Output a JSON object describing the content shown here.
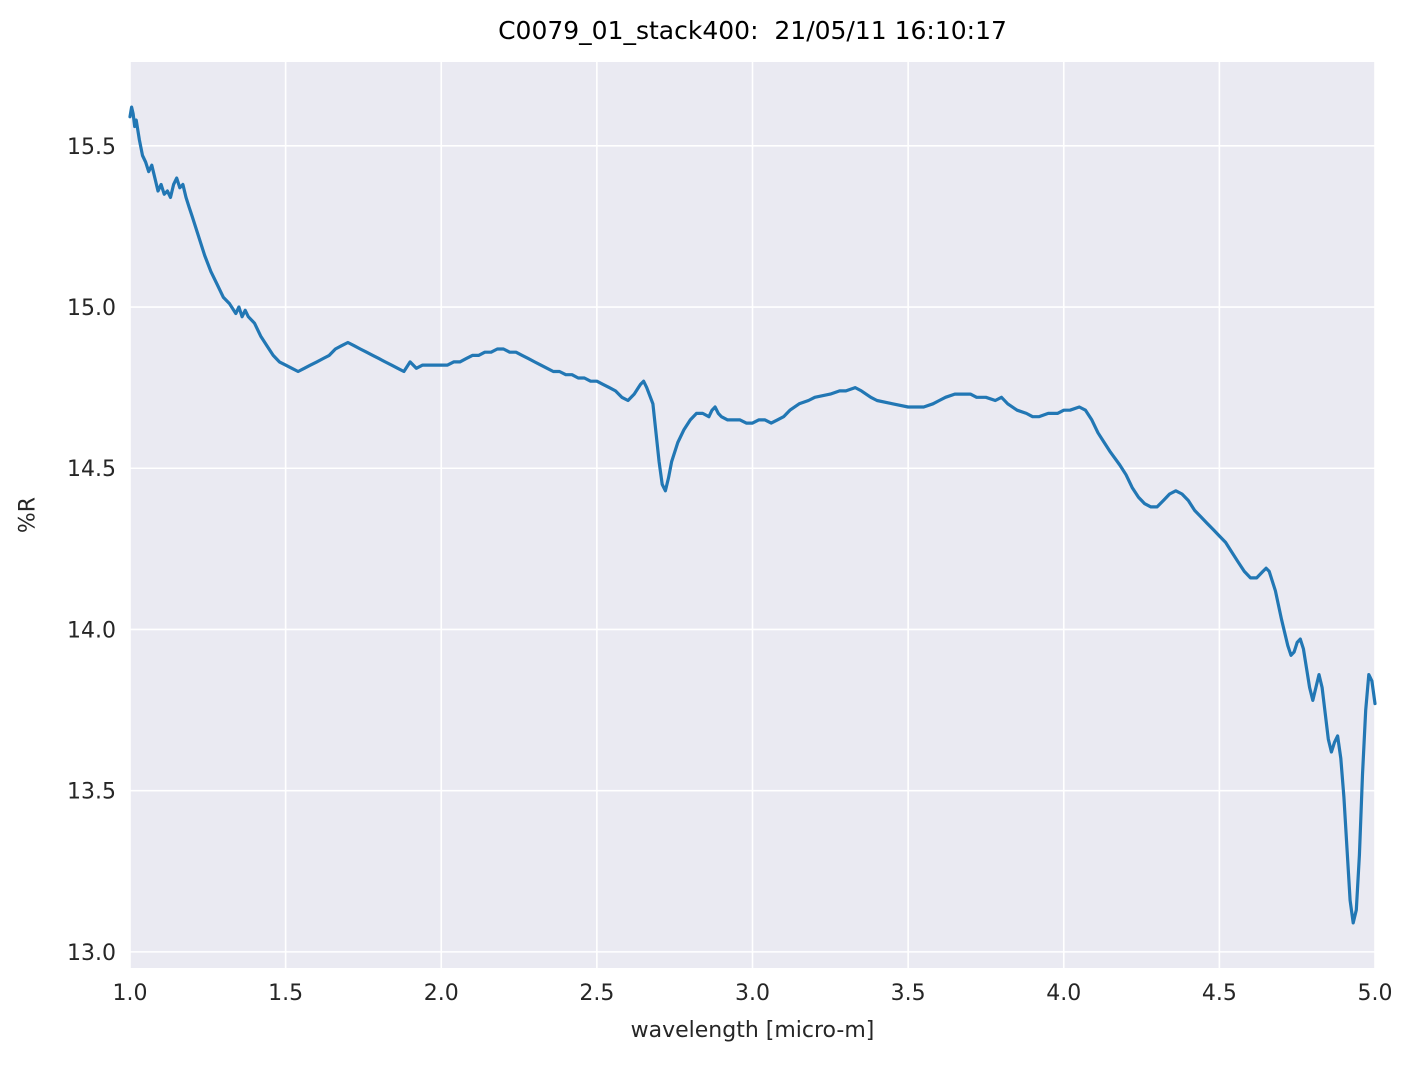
{
  "figure": {
    "title": "C0079_01_stack400:  21/05/11 16:10:17",
    "xlabel": "wavelength [micro-m]",
    "ylabel": "%R"
  },
  "chart_data": {
    "type": "line",
    "title": "C0079_01_stack400:  21/05/11 16:10:17",
    "xlabel": "wavelength [micro-m]",
    "ylabel": "%R",
    "xlim": [
      1.0,
      5.0
    ],
    "ylim": [
      12.95,
      15.76
    ],
    "xticks": [
      1.0,
      1.5,
      2.0,
      2.5,
      3.0,
      3.5,
      4.0,
      4.5,
      5.0
    ],
    "yticks": [
      13.0,
      13.5,
      14.0,
      14.5,
      15.0,
      15.5
    ],
    "grid": true,
    "legend": "none",
    "plot_bg": "#eaeaf2",
    "grid_color": "#ffffff",
    "line_color": "#2277b4",
    "tick_color": "#262626",
    "series": [
      {
        "name": "%R",
        "points": [
          [
            1.0,
            15.59
          ],
          [
            1.005,
            15.62
          ],
          [
            1.01,
            15.6
          ],
          [
            1.015,
            15.56
          ],
          [
            1.02,
            15.58
          ],
          [
            1.03,
            15.52
          ],
          [
            1.04,
            15.47
          ],
          [
            1.05,
            15.45
          ],
          [
            1.06,
            15.42
          ],
          [
            1.07,
            15.44
          ],
          [
            1.08,
            15.4
          ],
          [
            1.09,
            15.36
          ],
          [
            1.1,
            15.38
          ],
          [
            1.11,
            15.35
          ],
          [
            1.12,
            15.36
          ],
          [
            1.13,
            15.34
          ],
          [
            1.14,
            15.38
          ],
          [
            1.15,
            15.4
          ],
          [
            1.16,
            15.37
          ],
          [
            1.17,
            15.38
          ],
          [
            1.18,
            15.34
          ],
          [
            1.19,
            15.31
          ],
          [
            1.2,
            15.28
          ],
          [
            1.22,
            15.22
          ],
          [
            1.24,
            15.16
          ],
          [
            1.26,
            15.11
          ],
          [
            1.28,
            15.07
          ],
          [
            1.3,
            15.03
          ],
          [
            1.32,
            15.01
          ],
          [
            1.34,
            14.98
          ],
          [
            1.35,
            15.0
          ],
          [
            1.36,
            14.97
          ],
          [
            1.37,
            14.99
          ],
          [
            1.38,
            14.97
          ],
          [
            1.4,
            14.95
          ],
          [
            1.42,
            14.91
          ],
          [
            1.44,
            14.88
          ],
          [
            1.46,
            14.85
          ],
          [
            1.48,
            14.83
          ],
          [
            1.5,
            14.82
          ],
          [
            1.52,
            14.81
          ],
          [
            1.54,
            14.8
          ],
          [
            1.56,
            14.81
          ],
          [
            1.58,
            14.82
          ],
          [
            1.6,
            14.83
          ],
          [
            1.62,
            14.84
          ],
          [
            1.64,
            14.85
          ],
          [
            1.66,
            14.87
          ],
          [
            1.68,
            14.88
          ],
          [
            1.7,
            14.89
          ],
          [
            1.72,
            14.88
          ],
          [
            1.74,
            14.87
          ],
          [
            1.76,
            14.86
          ],
          [
            1.78,
            14.85
          ],
          [
            1.8,
            14.84
          ],
          [
            1.82,
            14.83
          ],
          [
            1.84,
            14.82
          ],
          [
            1.86,
            14.81
          ],
          [
            1.88,
            14.8
          ],
          [
            1.9,
            14.83
          ],
          [
            1.92,
            14.81
          ],
          [
            1.94,
            14.82
          ],
          [
            1.96,
            14.82
          ],
          [
            1.98,
            14.82
          ],
          [
            2.0,
            14.82
          ],
          [
            2.02,
            14.82
          ],
          [
            2.04,
            14.83
          ],
          [
            2.06,
            14.83
          ],
          [
            2.08,
            14.84
          ],
          [
            2.1,
            14.85
          ],
          [
            2.12,
            14.85
          ],
          [
            2.14,
            14.86
          ],
          [
            2.16,
            14.86
          ],
          [
            2.18,
            14.87
          ],
          [
            2.2,
            14.87
          ],
          [
            2.22,
            14.86
          ],
          [
            2.24,
            14.86
          ],
          [
            2.26,
            14.85
          ],
          [
            2.28,
            14.84
          ],
          [
            2.3,
            14.83
          ],
          [
            2.32,
            14.82
          ],
          [
            2.34,
            14.81
          ],
          [
            2.36,
            14.8
          ],
          [
            2.38,
            14.8
          ],
          [
            2.4,
            14.79
          ],
          [
            2.42,
            14.79
          ],
          [
            2.44,
            14.78
          ],
          [
            2.46,
            14.78
          ],
          [
            2.48,
            14.77
          ],
          [
            2.5,
            14.77
          ],
          [
            2.52,
            14.76
          ],
          [
            2.54,
            14.75
          ],
          [
            2.56,
            14.74
          ],
          [
            2.58,
            14.72
          ],
          [
            2.6,
            14.71
          ],
          [
            2.62,
            14.73
          ],
          [
            2.64,
            14.76
          ],
          [
            2.65,
            14.77
          ],
          [
            2.66,
            14.75
          ],
          [
            2.68,
            14.7
          ],
          [
            2.7,
            14.52
          ],
          [
            2.71,
            14.45
          ],
          [
            2.72,
            14.43
          ],
          [
            2.73,
            14.47
          ],
          [
            2.74,
            14.52
          ],
          [
            2.76,
            14.58
          ],
          [
            2.78,
            14.62
          ],
          [
            2.8,
            14.65
          ],
          [
            2.82,
            14.67
          ],
          [
            2.84,
            14.67
          ],
          [
            2.86,
            14.66
          ],
          [
            2.87,
            14.68
          ],
          [
            2.88,
            14.69
          ],
          [
            2.89,
            14.67
          ],
          [
            2.9,
            14.66
          ],
          [
            2.92,
            14.65
          ],
          [
            2.94,
            14.65
          ],
          [
            2.96,
            14.65
          ],
          [
            2.98,
            14.64
          ],
          [
            3.0,
            14.64
          ],
          [
            3.02,
            14.65
          ],
          [
            3.04,
            14.65
          ],
          [
            3.06,
            14.64
          ],
          [
            3.08,
            14.65
          ],
          [
            3.1,
            14.66
          ],
          [
            3.12,
            14.68
          ],
          [
            3.15,
            14.7
          ],
          [
            3.18,
            14.71
          ],
          [
            3.2,
            14.72
          ],
          [
            3.25,
            14.73
          ],
          [
            3.28,
            14.74
          ],
          [
            3.3,
            14.74
          ],
          [
            3.33,
            14.75
          ],
          [
            3.35,
            14.74
          ],
          [
            3.38,
            14.72
          ],
          [
            3.4,
            14.71
          ],
          [
            3.45,
            14.7
          ],
          [
            3.5,
            14.69
          ],
          [
            3.52,
            14.69
          ],
          [
            3.55,
            14.69
          ],
          [
            3.58,
            14.7
          ],
          [
            3.6,
            14.71
          ],
          [
            3.62,
            14.72
          ],
          [
            3.65,
            14.73
          ],
          [
            3.68,
            14.73
          ],
          [
            3.7,
            14.73
          ],
          [
            3.72,
            14.72
          ],
          [
            3.75,
            14.72
          ],
          [
            3.78,
            14.71
          ],
          [
            3.8,
            14.72
          ],
          [
            3.82,
            14.7
          ],
          [
            3.85,
            14.68
          ],
          [
            3.88,
            14.67
          ],
          [
            3.9,
            14.66
          ],
          [
            3.92,
            14.66
          ],
          [
            3.95,
            14.67
          ],
          [
            3.98,
            14.67
          ],
          [
            4.0,
            14.68
          ],
          [
            4.02,
            14.68
          ],
          [
            4.05,
            14.69
          ],
          [
            4.07,
            14.68
          ],
          [
            4.09,
            14.65
          ],
          [
            4.11,
            14.61
          ],
          [
            4.13,
            14.58
          ],
          [
            4.15,
            14.55
          ],
          [
            4.18,
            14.51
          ],
          [
            4.2,
            14.48
          ],
          [
            4.22,
            14.44
          ],
          [
            4.24,
            14.41
          ],
          [
            4.26,
            14.39
          ],
          [
            4.28,
            14.38
          ],
          [
            4.3,
            14.38
          ],
          [
            4.32,
            14.4
          ],
          [
            4.34,
            14.42
          ],
          [
            4.36,
            14.43
          ],
          [
            4.38,
            14.42
          ],
          [
            4.4,
            14.4
          ],
          [
            4.42,
            14.37
          ],
          [
            4.44,
            14.35
          ],
          [
            4.46,
            14.33
          ],
          [
            4.48,
            14.31
          ],
          [
            4.5,
            14.29
          ],
          [
            4.52,
            14.27
          ],
          [
            4.54,
            14.24
          ],
          [
            4.56,
            14.21
          ],
          [
            4.58,
            14.18
          ],
          [
            4.6,
            14.16
          ],
          [
            4.62,
            14.16
          ],
          [
            4.64,
            14.18
          ],
          [
            4.65,
            14.19
          ],
          [
            4.66,
            14.18
          ],
          [
            4.68,
            14.12
          ],
          [
            4.7,
            14.03
          ],
          [
            4.72,
            13.95
          ],
          [
            4.73,
            13.92
          ],
          [
            4.74,
            13.93
          ],
          [
            4.75,
            13.96
          ],
          [
            4.76,
            13.97
          ],
          [
            4.77,
            13.94
          ],
          [
            4.78,
            13.88
          ],
          [
            4.79,
            13.82
          ],
          [
            4.8,
            13.78
          ],
          [
            4.81,
            13.82
          ],
          [
            4.82,
            13.86
          ],
          [
            4.83,
            13.82
          ],
          [
            4.84,
            13.74
          ],
          [
            4.85,
            13.66
          ],
          [
            4.86,
            13.62
          ],
          [
            4.87,
            13.65
          ],
          [
            4.88,
            13.67
          ],
          [
            4.89,
            13.6
          ],
          [
            4.9,
            13.48
          ],
          [
            4.91,
            13.32
          ],
          [
            4.92,
            13.16
          ],
          [
            4.93,
            13.09
          ],
          [
            4.94,
            13.13
          ],
          [
            4.95,
            13.3
          ],
          [
            4.96,
            13.55
          ],
          [
            4.97,
            13.75
          ],
          [
            4.98,
            13.86
          ],
          [
            4.99,
            13.84
          ],
          [
            5.0,
            13.77
          ]
        ]
      }
    ]
  }
}
